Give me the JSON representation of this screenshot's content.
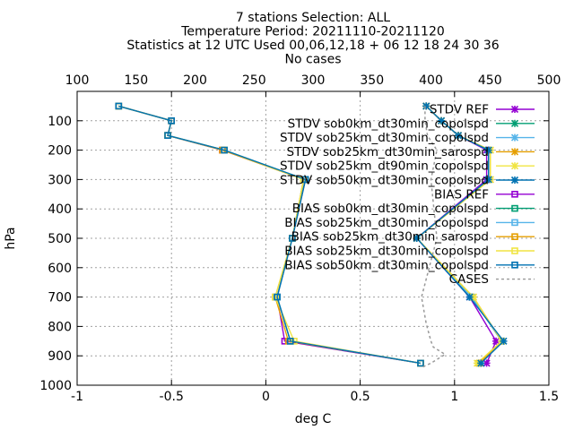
{
  "chart_data": {
    "type": "line",
    "title_lines": [
      "7 stations Selection: ALL",
      "Temperature  Period: 20211110-20211120",
      "Statistics at 12 UTC  Used 00,06,12,18 + 06 12 18 24 30 36",
      "No cases"
    ],
    "xlabel": "deg C",
    "ylabel": "hPa",
    "xlim": [
      -1,
      1.5
    ],
    "ylim": [
      1000,
      0
    ],
    "x_ticks": [
      "-1",
      "-0.5",
      "0",
      "0.5",
      "1",
      "1.5"
    ],
    "y_ticks": [
      "100",
      "200",
      "300",
      "400",
      "500",
      "600",
      "700",
      "800",
      "900",
      "1000"
    ],
    "x2lim": [
      100,
      500
    ],
    "x2_ticks": [
      "100",
      "150",
      "200",
      "250",
      "300",
      "350",
      "400",
      "450",
      "500"
    ],
    "grid": true,
    "legend_position": "top-right",
    "levels": [
      50,
      100,
      150,
      200,
      300,
      500,
      700,
      850,
      925
    ],
    "series": [
      {
        "name": "STDV REF",
        "color": "#9400d3",
        "marker": "x",
        "values": [
          0.85,
          0.93,
          1.02,
          1.17,
          1.17,
          0.8,
          1.08,
          1.22,
          1.17
        ]
      },
      {
        "name": "STDV sob0km_dt30min_copolspd",
        "color": "#009e73",
        "marker": "x",
        "values": [
          0.85,
          0.93,
          1.02,
          1.18,
          1.18,
          0.8,
          1.09,
          1.25,
          1.14
        ]
      },
      {
        "name": "STDV sob25km_dt30min_copolspd",
        "color": "#56b4e9",
        "marker": "x",
        "values": [
          0.85,
          0.93,
          1.02,
          1.18,
          1.18,
          0.8,
          1.09,
          1.25,
          1.14
        ]
      },
      {
        "name": "STDV sob25km_dt30min_sarospd",
        "color": "#e69f00",
        "marker": "x",
        "values": [
          0.85,
          0.93,
          1.02,
          1.19,
          1.19,
          0.8,
          1.1,
          1.25,
          1.13
        ]
      },
      {
        "name": "STDV sob25km_dt90min_copolspd",
        "color": "#f0e442",
        "marker": "x",
        "values": [
          0.85,
          0.93,
          1.02,
          1.19,
          1.19,
          0.8,
          1.1,
          1.25,
          1.12
        ]
      },
      {
        "name": "STDV sob50km_dt30min_copolspd",
        "color": "#0072b2",
        "marker": "x",
        "values": [
          0.85,
          0.93,
          1.02,
          1.18,
          1.18,
          0.8,
          1.08,
          1.26,
          1.14
        ]
      },
      {
        "name": "BIAS REF",
        "color": "#9400d3",
        "marker": "square",
        "values": [
          -0.78,
          -0.5,
          -0.52,
          -0.23,
          0.21,
          0.14,
          0.06,
          0.1,
          0.82
        ]
      },
      {
        "name": "BIAS sob0km_dt30min_copolspd",
        "color": "#009e73",
        "marker": "square",
        "values": [
          -0.78,
          -0.5,
          -0.52,
          -0.22,
          0.21,
          0.14,
          0.06,
          0.13,
          0.82
        ]
      },
      {
        "name": "BIAS sob25km_dt30min_copolspd",
        "color": "#56b4e9",
        "marker": "square",
        "values": [
          -0.78,
          -0.5,
          -0.52,
          -0.22,
          0.2,
          0.14,
          0.06,
          0.13,
          0.82
        ]
      },
      {
        "name": "BIAS sob25km_dt30min_sarospd",
        "color": "#e69f00",
        "marker": "square",
        "values": [
          -0.78,
          -0.5,
          -0.52,
          -0.23,
          0.2,
          0.14,
          0.05,
          0.12,
          0.82
        ]
      },
      {
        "name": "BIAS sob25km_dt30min_copolspd",
        "color": "#f0e442",
        "marker": "square",
        "values": [
          -0.78,
          -0.5,
          -0.52,
          -0.22,
          0.2,
          0.14,
          0.05,
          0.15,
          0.82
        ]
      },
      {
        "name": "BIAS sob50km_dt30min_copolspd",
        "color": "#0072b2",
        "marker": "square",
        "values": [
          -0.78,
          -0.5,
          -0.52,
          -0.22,
          0.21,
          0.14,
          0.06,
          0.13,
          0.82
        ]
      },
      {
        "name": "CASES",
        "color": "#999999",
        "marker": "none",
        "dashed": true,
        "axis": "x2",
        "values": [
          395,
          395,
          397,
          405,
          400,
          405,
          392,
          400,
          400
        ]
      }
    ],
    "cases_extra": {
      "x2": [
        396,
        402,
        412,
        392
      ],
      "levels": [
        790,
        870,
        895,
        940
      ]
    }
  }
}
